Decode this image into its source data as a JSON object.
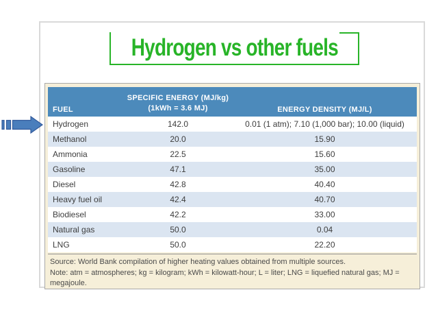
{
  "title": {
    "text": "Hydrogen vs other fuels"
  },
  "table": {
    "header": {
      "fuel": "FUEL",
      "specific_energy_line1": "SPECIFIC ENERGY (MJ/kg)",
      "specific_energy_line2": "(1kWh = 3.6 MJ)",
      "energy_density": "ENERGY DENSITY (MJ/L)"
    }
  },
  "notes": {
    "source": "Source: World Bank compilation of higher heating values obtained from multiple sources.",
    "note": "Note: atm = atmospheres; kg = kilogram; kWh = kilowatt-hour; L = liter; LNG = liquefied natural gas; MJ = megajoule."
  },
  "icons": {
    "arrow": "striped-right-arrow"
  },
  "colors": {
    "title_green": "#28b428",
    "header_blue": "#4c8abb",
    "row_alt_blue": "#dbe5f1",
    "cream": "#f6efd9",
    "frame_gray": "#d9d9d9",
    "table_border_gray": "#a8a8a8",
    "arrow_blue": "#4a7ebc",
    "arrow_border": "#31599b"
  },
  "chart_data": {
    "type": "table",
    "title": "Hydrogen vs other fuels",
    "columns": [
      "FUEL",
      "SPECIFIC ENERGY (MJ/kg) (1kWh = 3.6 MJ)",
      "ENERGY DENSITY (MJ/L)"
    ],
    "rows": [
      [
        "Hydrogen",
        "142.0",
        "0.01 (1 atm); 7.10 (1,000 bar); 10.00 (liquid)"
      ],
      [
        "Methanol",
        "20.0",
        "15.90"
      ],
      [
        "Ammonia",
        "22.5",
        "15.60"
      ],
      [
        "Gasoline",
        "47.1",
        "35.00"
      ],
      [
        "Diesel",
        "42.8",
        "40.40"
      ],
      [
        "Heavy fuel oil",
        "42.4",
        "40.70"
      ],
      [
        "Biodiesel",
        "42.2",
        "33.00"
      ],
      [
        "Natural gas",
        "50.0",
        "0.04"
      ],
      [
        "LNG",
        "50.0",
        "22.20"
      ]
    ]
  }
}
